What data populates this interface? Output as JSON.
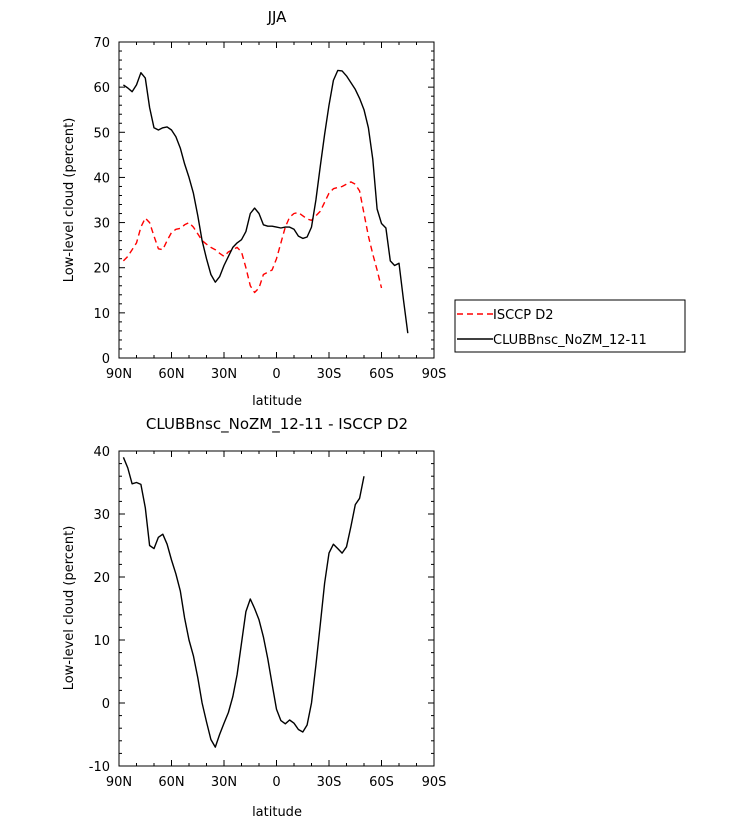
{
  "chart_data": [
    {
      "type": "line",
      "title": "JJA",
      "xlabel": "latitude",
      "ylabel": "Low-level cloud (percent)",
      "xlim": [
        -90,
        90
      ],
      "ylim": [
        0,
        70
      ],
      "x_ticks": [
        -90,
        -60,
        -30,
        0,
        30,
        60,
        90
      ],
      "x_tick_labels": [
        "90N",
        "60N",
        "30N",
        "0",
        "30S",
        "60S",
        "90S"
      ],
      "y_ticks": [
        0,
        10,
        20,
        30,
        40,
        50,
        60,
        70
      ],
      "y_tick_labels": [
        "0",
        "10",
        "20",
        "30",
        "40",
        "50",
        "60",
        "70"
      ],
      "legend": "right",
      "series": [
        {
          "name": "ISCCP D2",
          "color": "#ff0000",
          "dash": "dashed",
          "points": [
            [
              -87.5,
              21.5
            ],
            [
              -85,
              22.5
            ],
            [
              -82.5,
              24
            ],
            [
              -80,
              25.5
            ],
            [
              -77.5,
              29
            ],
            [
              -75,
              31
            ],
            [
              -72.5,
              30
            ],
            [
              -70,
              27
            ],
            [
              -67.5,
              24.2
            ],
            [
              -65,
              24
            ],
            [
              -62.5,
              26
            ],
            [
              -60,
              27.8
            ],
            [
              -57.5,
              28.5
            ],
            [
              -55,
              28.7
            ],
            [
              -52.5,
              29.5
            ],
            [
              -50,
              30
            ],
            [
              -47.5,
              29
            ],
            [
              -45,
              27.5
            ],
            [
              -42.5,
              26
            ],
            [
              -40,
              25.2
            ],
            [
              -37.5,
              24.5
            ],
            [
              -35,
              24
            ],
            [
              -32.5,
              23.2
            ],
            [
              -30,
              22.5
            ],
            [
              -27.5,
              23.5
            ],
            [
              -25,
              24
            ],
            [
              -22.5,
              24.5
            ],
            [
              -20,
              23.5
            ],
            [
              -17.5,
              20
            ],
            [
              -15,
              16
            ],
            [
              -12.5,
              14.5
            ],
            [
              -10,
              15.5
            ],
            [
              -7.5,
              18.5
            ],
            [
              -5,
              19
            ],
            [
              -2.5,
              19.5
            ],
            [
              0,
              22
            ],
            [
              2.5,
              25.5
            ],
            [
              5,
              29
            ],
            [
              7.5,
              31.2
            ],
            [
              10,
              32
            ],
            [
              12.5,
              32.2
            ],
            [
              15,
              31.5
            ],
            [
              17.5,
              30.8
            ],
            [
              20,
              30.5
            ],
            [
              22.5,
              31.5
            ],
            [
              25,
              32.5
            ],
            [
              27.5,
              34.5
            ],
            [
              30,
              36.5
            ],
            [
              32.5,
              37.5
            ],
            [
              35,
              37.8
            ],
            [
              37.5,
              38
            ],
            [
              40,
              38.5
            ],
            [
              42.5,
              39
            ],
            [
              45,
              38.5
            ],
            [
              47.5,
              37
            ],
            [
              50,
              32
            ],
            [
              52.5,
              27
            ],
            [
              55,
              23
            ],
            [
              57.5,
              19.5
            ],
            [
              60,
              15.5
            ]
          ]
        },
        {
          "name": "CLUBBnsc_NoZM_12-11",
          "color": "#000000",
          "dash": "solid",
          "points": [
            [
              -87.5,
              60.5
            ],
            [
              -85,
              59.8
            ],
            [
              -82.5,
              59
            ],
            [
              -80,
              60.5
            ],
            [
              -77.5,
              63.2
            ],
            [
              -75,
              62
            ],
            [
              -72.5,
              55.5
            ],
            [
              -70,
              51
            ],
            [
              -67.5,
              50.5
            ],
            [
              -65,
              51
            ],
            [
              -62.5,
              51.2
            ],
            [
              -60,
              50.5
            ],
            [
              -57.5,
              49
            ],
            [
              -55,
              46.5
            ],
            [
              -52.5,
              43
            ],
            [
              -50,
              40
            ],
            [
              -47.5,
              36.5
            ],
            [
              -45,
              31.5
            ],
            [
              -42.5,
              26
            ],
            [
              -40,
              22
            ],
            [
              -37.5,
              18.5
            ],
            [
              -35,
              16.8
            ],
            [
              -32.5,
              18
            ],
            [
              -30,
              20.5
            ],
            [
              -27.5,
              22.5
            ],
            [
              -25,
              24.5
            ],
            [
              -22.5,
              25.5
            ],
            [
              -20,
              26.2
            ],
            [
              -17.5,
              28
            ],
            [
              -15,
              32
            ],
            [
              -12.5,
              33.2
            ],
            [
              -10,
              32
            ],
            [
              -7.5,
              29.5
            ],
            [
              -5,
              29.2
            ],
            [
              -2.5,
              29.2
            ],
            [
              0,
              29
            ],
            [
              2.5,
              28.8
            ],
            [
              5,
              29
            ],
            [
              7.5,
              29
            ],
            [
              10,
              28.5
            ],
            [
              12.5,
              27
            ],
            [
              15,
              26.5
            ],
            [
              17.5,
              26.8
            ],
            [
              20,
              29
            ],
            [
              22.5,
              35
            ],
            [
              25,
              42.5
            ],
            [
              27.5,
              49.5
            ],
            [
              30,
              56
            ],
            [
              32.5,
              61.5
            ],
            [
              35,
              63.7
            ],
            [
              37.5,
              63.6
            ],
            [
              40,
              62.5
            ],
            [
              42.5,
              61
            ],
            [
              45,
              59.5
            ],
            [
              47.5,
              57.5
            ],
            [
              50,
              55
            ],
            [
              52.5,
              51
            ],
            [
              55,
              44
            ],
            [
              57.5,
              33
            ],
            [
              60,
              29.8
            ],
            [
              62.5,
              28.8
            ],
            [
              65,
              21.5
            ],
            [
              67.5,
              20.5
            ],
            [
              70,
              21
            ],
            [
              72.5,
              13
            ],
            [
              75,
              5.5
            ]
          ]
        }
      ]
    },
    {
      "type": "line",
      "title": "CLUBBnsc_NoZM_12-11 - ISCCP D2",
      "xlabel": "latitude",
      "ylabel": "Low-level cloud (percent)",
      "xlim": [
        -90,
        90
      ],
      "ylim": [
        -10,
        40
      ],
      "x_ticks": [
        -90,
        -60,
        -30,
        0,
        30,
        60,
        90
      ],
      "x_tick_labels": [
        "90N",
        "60N",
        "30N",
        "0",
        "30S",
        "60S",
        "90S"
      ],
      "y_ticks": [
        -10,
        0,
        10,
        20,
        30,
        40
      ],
      "y_tick_labels": [
        "-10",
        "0",
        "10",
        "20",
        "30",
        "40"
      ],
      "series": [
        {
          "color": "#000000",
          "dash": "solid",
          "points": [
            [
              -87.5,
              39
            ],
            [
              -85,
              37.3
            ],
            [
              -82.5,
              34.8
            ],
            [
              -80,
              35
            ],
            [
              -77.5,
              34.7
            ],
            [
              -75,
              31
            ],
            [
              -72.5,
              25
            ],
            [
              -70,
              24.5
            ],
            [
              -67.5,
              26.3
            ],
            [
              -65,
              26.8
            ],
            [
              -62.5,
              25.2
            ],
            [
              -60,
              22.7
            ],
            [
              -57.5,
              20.5
            ],
            [
              -55,
              17.8
            ],
            [
              -52.5,
              13.5
            ],
            [
              -50,
              10
            ],
            [
              -47.5,
              7.5
            ],
            [
              -45,
              4
            ],
            [
              -42.5,
              0
            ],
            [
              -40,
              -3
            ],
            [
              -37.5,
              -5.8
            ],
            [
              -35,
              -7
            ],
            [
              -32.5,
              -5
            ],
            [
              -30,
              -3.2
            ],
            [
              -27.5,
              -1.5
            ],
            [
              -25,
              1
            ],
            [
              -22.5,
              4.5
            ],
            [
              -20,
              9.5
            ],
            [
              -17.5,
              14.5
            ],
            [
              -15,
              16.5
            ],
            [
              -12.5,
              15
            ],
            [
              -10,
              13.2
            ],
            [
              -7.5,
              10.5
            ],
            [
              -5,
              7
            ],
            [
              -2.5,
              3
            ],
            [
              0,
              -1
            ],
            [
              2.5,
              -2.8
            ],
            [
              5,
              -3.3
            ],
            [
              7.5,
              -2.7
            ],
            [
              10,
              -3.2
            ],
            [
              12.5,
              -4.2
            ],
            [
              15,
              -4.6
            ],
            [
              17.5,
              -3.5
            ],
            [
              20,
              0
            ],
            [
              22.5,
              6
            ],
            [
              25,
              12.5
            ],
            [
              27.5,
              19
            ],
            [
              30,
              23.8
            ],
            [
              32.5,
              25.2
            ],
            [
              35,
              24.5
            ],
            [
              37.5,
              23.8
            ],
            [
              40,
              24.8
            ],
            [
              42.5,
              28
            ],
            [
              45,
              31.5
            ],
            [
              47.5,
              32.5
            ],
            [
              50,
              36
            ]
          ]
        }
      ]
    }
  ]
}
